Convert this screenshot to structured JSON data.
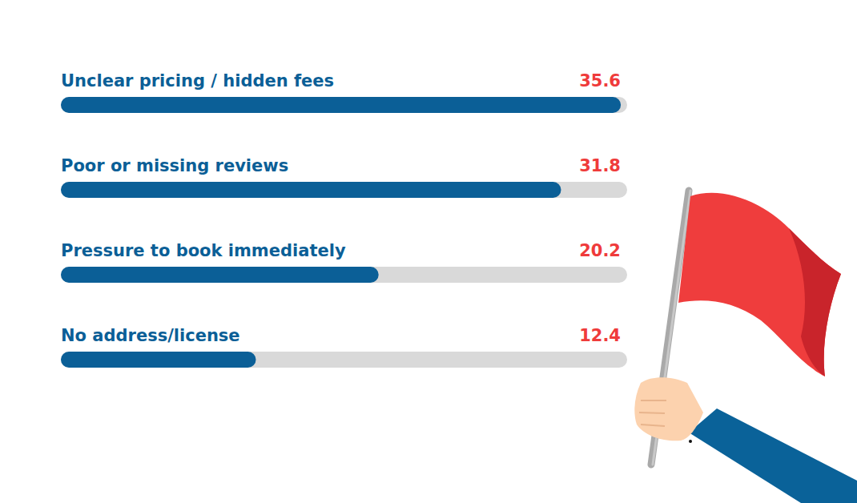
{
  "chart_data": {
    "type": "bar",
    "orientation": "horizontal",
    "categories": [
      "Unclear pricing / hidden fees",
      "Poor or missing reviews",
      "Pressure to book immediately",
      "No address/license"
    ],
    "values": [
      35.6,
      31.8,
      20.2,
      12.4
    ],
    "color": "#0b5f97",
    "xlim": [
      0,
      36
    ],
    "tick_labels": false,
    "grid": false,
    "data_labels": true
  }
}
